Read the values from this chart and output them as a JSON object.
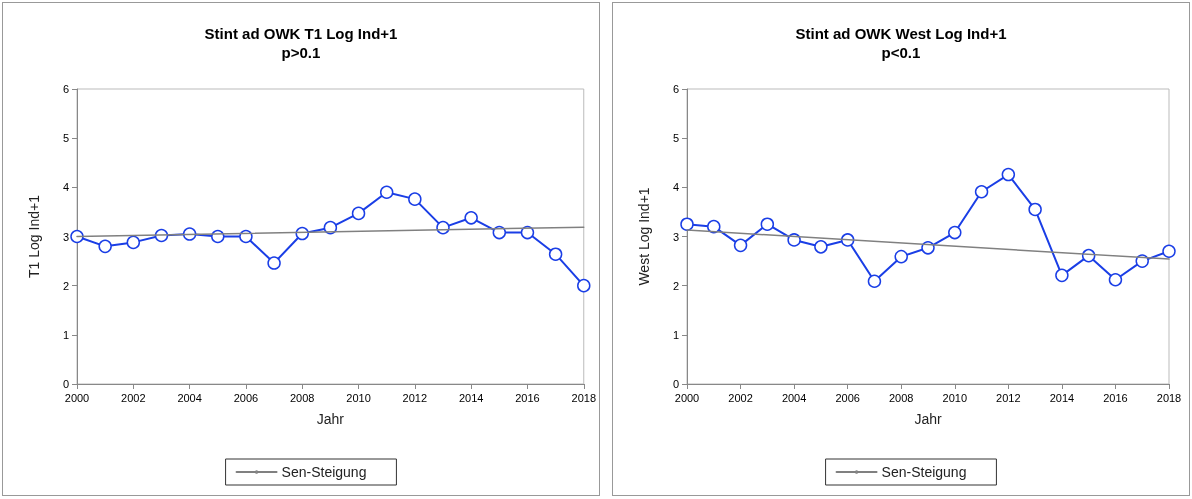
{
  "chart_data": [
    {
      "type": "line",
      "title": "Stint ad OWK T1 Log Ind+1",
      "subtitle": "p>0.1",
      "xlabel": "Jahr",
      "ylabel": "T1 Log Ind+1",
      "xlim": [
        2000,
        2018
      ],
      "xticks": [
        2000,
        2002,
        2004,
        2006,
        2008,
        2010,
        2012,
        2014,
        2016,
        2018
      ],
      "ylim": [
        0,
        6
      ],
      "yticks": [
        0,
        1,
        2,
        3,
        4,
        5,
        6
      ],
      "grid": false,
      "legend": "bottom",
      "series": [
        {
          "color": "#1a3ee6",
          "marker": "circle",
          "x": [
            2000,
            2001,
            2002,
            2003,
            2004,
            2005,
            2006,
            2007,
            2008,
            2009,
            2010,
            2011,
            2012,
            2013,
            2014,
            2015,
            2016,
            2017,
            2018
          ],
          "values": [
            3.0,
            2.8,
            2.88,
            3.02,
            3.05,
            3.0,
            3.0,
            2.46,
            3.06,
            3.18,
            3.47,
            3.9,
            3.76,
            3.18,
            3.38,
            3.08,
            3.08,
            2.64,
            2.0
          ]
        },
        {
          "name": "Sen-Steigung",
          "color": "#808080",
          "marker": "none",
          "x": [
            2000,
            2018
          ],
          "values": [
            3.0,
            3.19
          ]
        }
      ]
    },
    {
      "type": "line",
      "title": "Stint ad OWK West Log Ind+1",
      "subtitle": "p<0.1",
      "xlabel": "Jahr",
      "ylabel": "West Log Ind+1",
      "xlim": [
        2000,
        2018
      ],
      "xticks": [
        2000,
        2002,
        2004,
        2006,
        2008,
        2010,
        2012,
        2014,
        2016,
        2018
      ],
      "ylim": [
        0,
        6
      ],
      "yticks": [
        0,
        1,
        2,
        3,
        4,
        5,
        6
      ],
      "grid": false,
      "legend": "bottom",
      "series": [
        {
          "color": "#1a3ee6",
          "marker": "circle",
          "x": [
            2000,
            2001,
            2002,
            2003,
            2004,
            2005,
            2006,
            2007,
            2008,
            2009,
            2010,
            2011,
            2012,
            2013,
            2014,
            2015,
            2016,
            2017,
            2018
          ],
          "values": [
            3.25,
            3.2,
            2.82,
            3.25,
            2.93,
            2.79,
            2.93,
            2.09,
            2.59,
            2.77,
            3.08,
            3.91,
            4.26,
            3.55,
            2.21,
            2.61,
            2.12,
            2.5,
            2.7
          ]
        },
        {
          "name": "Sen-Steigung",
          "color": "#808080",
          "marker": "none",
          "x": [
            2000,
            2018
          ],
          "values": [
            3.13,
            2.54
          ]
        }
      ]
    }
  ]
}
